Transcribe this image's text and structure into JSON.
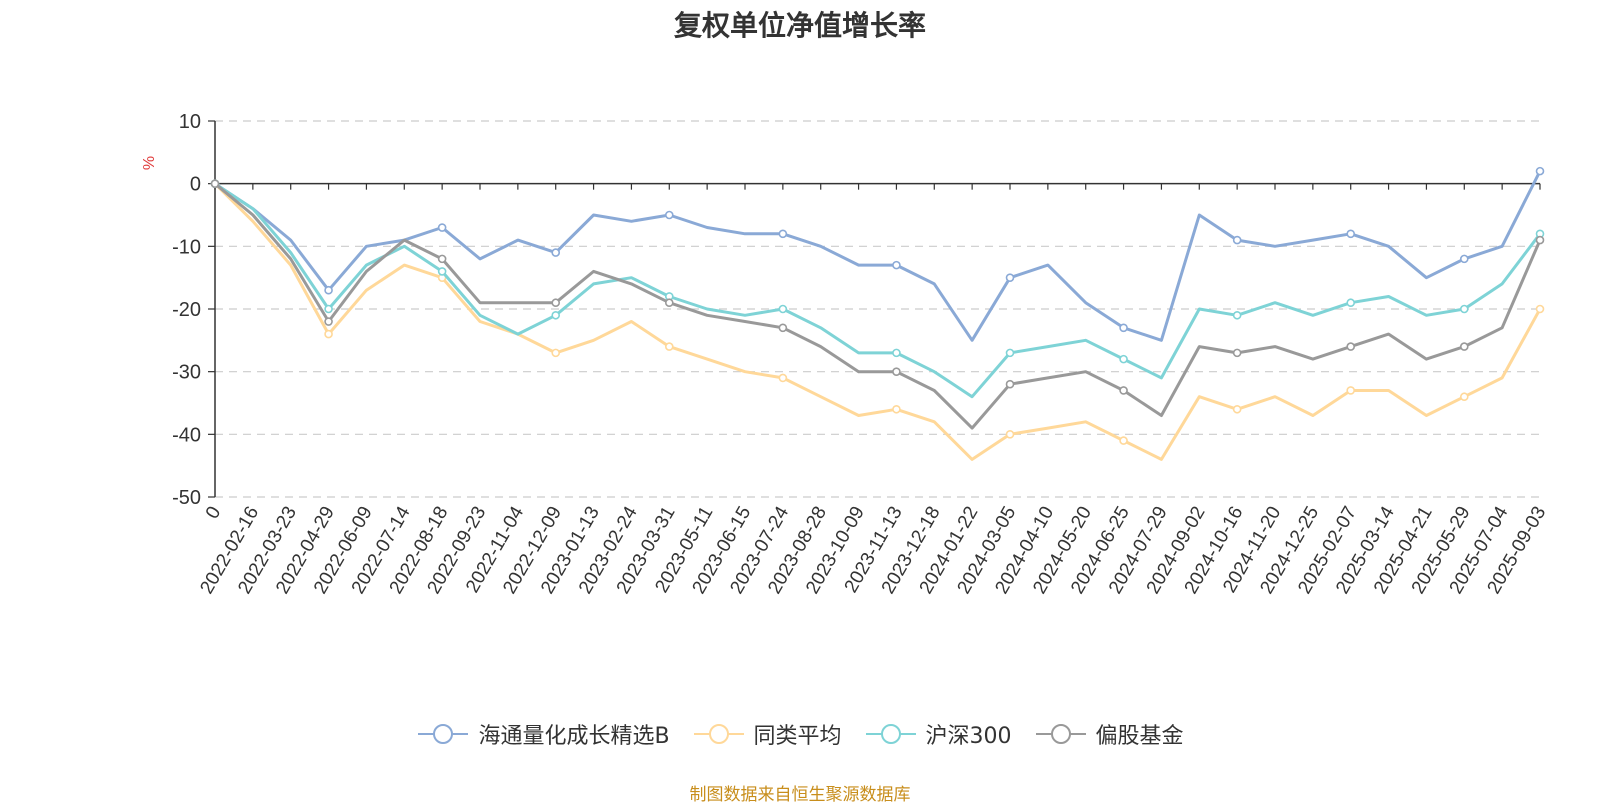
{
  "chart_data": {
    "type": "line",
    "title": "复权单位净值增长率",
    "ylabel": "%",
    "xlabel": "",
    "ylim": [
      -50,
      10
    ],
    "yticks": [
      10,
      0,
      -10,
      -20,
      -30,
      -40,
      -50
    ],
    "xtick_labels": [
      "0",
      "2022-02-16",
      "2022-03-23",
      "2022-04-29",
      "2022-06-09",
      "2022-07-14",
      "2022-08-18",
      "2022-09-23",
      "2022-11-04",
      "2022-12-09",
      "2023-01-13",
      "2023-02-24",
      "2023-03-31",
      "2023-05-11",
      "2023-06-15",
      "2023-07-24",
      "2023-08-28",
      "2023-10-09",
      "2023-11-13",
      "2023-12-18",
      "2024-01-22",
      "2024-03-05",
      "2024-04-10",
      "2024-05-20",
      "2024-06-25",
      "2024-07-29",
      "2024-09-02",
      "2024-10-16",
      "2024-11-20",
      "2024-12-25",
      "2025-02-07",
      "2025-03-14",
      "2025-04-21",
      "2025-05-29",
      "2025-07-04",
      "2025-09-03"
    ],
    "grid": true,
    "legend_position": "bottom",
    "series": [
      {
        "name": "海通量化成长精选B",
        "color": "#8aa9d6",
        "values": [
          0,
          -4,
          -9,
          -17,
          -10,
          -9,
          -7,
          -12,
          -9,
          -11,
          -5,
          -6,
          -5,
          -7,
          -8,
          -8,
          -10,
          -13,
          -13,
          -16,
          -25,
          -15,
          -13,
          -19,
          -23,
          -25,
          -5,
          -9,
          -10,
          -9,
          -8,
          -10,
          -15,
          -12,
          -10,
          2
        ]
      },
      {
        "name": "同类平均",
        "color": "#ffd899",
        "values": [
          0,
          -6,
          -13,
          -24,
          -17,
          -13,
          -15,
          -22,
          -24,
          -27,
          -25,
          -22,
          -26,
          -28,
          -30,
          -31,
          -34,
          -37,
          -36,
          -38,
          -44,
          -40,
          -39,
          -38,
          -41,
          -44,
          -34,
          -36,
          -34,
          -37,
          -33,
          -33,
          -37,
          -34,
          -31,
          -20
        ]
      },
      {
        "name": "沪深300",
        "color": "#7ed3d6",
        "values": [
          0,
          -4,
          -11,
          -20,
          -13,
          -10,
          -14,
          -21,
          -24,
          -21,
          -16,
          -15,
          -18,
          -20,
          -21,
          -20,
          -23,
          -27,
          -27,
          -30,
          -34,
          -27,
          -26,
          -25,
          -28,
          -31,
          -20,
          -21,
          -19,
          -21,
          -19,
          -18,
          -21,
          -20,
          -16,
          -8
        ]
      },
      {
        "name": "偏股基金",
        "color": "#999999",
        "values": [
          0,
          -5,
          -12,
          -22,
          -14,
          -9,
          -12,
          -19,
          -19,
          -19,
          -14,
          -16,
          -19,
          -21,
          -22,
          -23,
          -26,
          -30,
          -30,
          -33,
          -39,
          -32,
          -31,
          -30,
          -33,
          -37,
          -26,
          -27,
          -26,
          -28,
          -26,
          -24,
          -28,
          -26,
          -23,
          -9
        ]
      }
    ],
    "source_note": "制图数据来自恒生聚源数据库"
  }
}
